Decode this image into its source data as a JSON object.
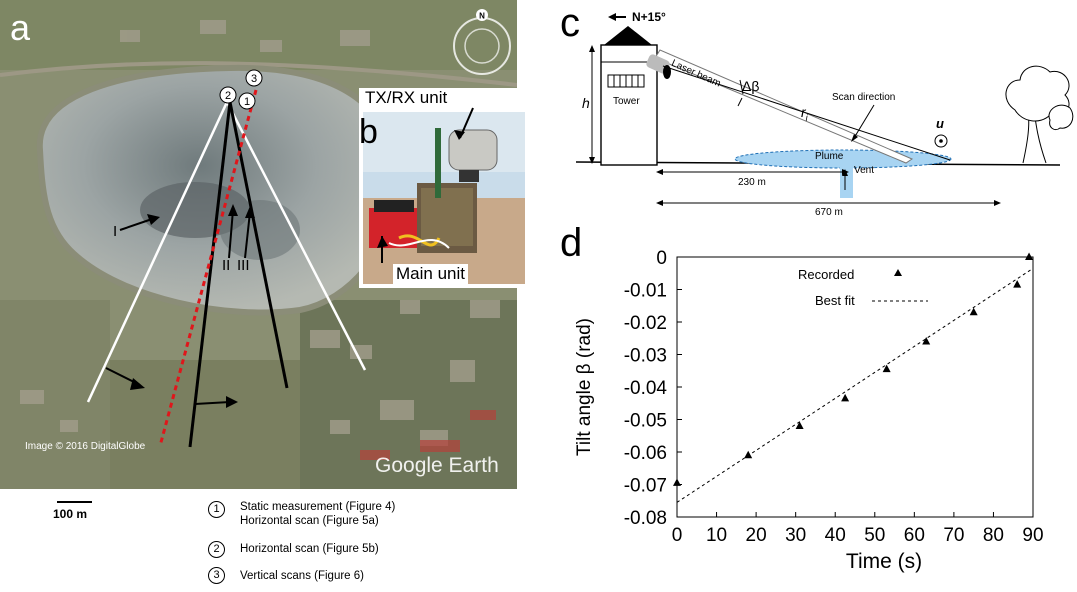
{
  "panel_a": {
    "letter": "a",
    "compass": "N",
    "scan_numbers": [
      "1",
      "2",
      "3"
    ],
    "features": [
      "I",
      "II",
      "III"
    ],
    "watermark": "Google Earth",
    "image_credit": "Image © 2016 DigitalGlobe",
    "scale_label": "100 m",
    "legend": [
      {
        "num": "1",
        "lines": [
          "Static measurement (Figure 4)",
          "Horizontal scan (Figure 5a)"
        ]
      },
      {
        "num": "2",
        "lines": [
          "Horizontal scan (Figure 5b)"
        ]
      },
      {
        "num": "3",
        "lines": [
          "Vertical scans (Figure 6)"
        ]
      }
    ]
  },
  "panel_b": {
    "letter": "b",
    "txrx_label": "TX/RX unit",
    "main_label": "Main unit"
  },
  "panel_c": {
    "letter": "c",
    "north": "N+15°",
    "tower": "Tower",
    "laser_beam": "Laser beam",
    "delta_beta": "Δβ",
    "r_label": "r",
    "r_sub": "i",
    "scan_direction": "Scan direction",
    "plume": "Plume",
    "vent": "Vent",
    "u_label": "u",
    "h_label": "h",
    "dist_230": "230 m",
    "dist_670": "670 m"
  },
  "panel_d": {
    "letter": "d"
  },
  "chart_data": {
    "type": "scatter",
    "xlabel": "Time (s)",
    "ylabel": "Tilt angle β (rad)",
    "xlim": [
      0,
      90
    ],
    "ylim": [
      -0.08,
      0
    ],
    "xticks": [
      "0",
      "10",
      "20",
      "30",
      "40",
      "50",
      "60",
      "70",
      "80",
      "90"
    ],
    "yticks": [
      "0",
      "-0.01",
      "-0.02",
      "-0.03",
      "-0.04",
      "-0.05",
      "-0.06",
      "-0.07",
      "-0.08"
    ],
    "legend": {
      "recorded": "Recorded",
      "fit": "Best fit"
    },
    "series": [
      {
        "name": "Recorded",
        "x": [
          0,
          18,
          31,
          42.5,
          53,
          63,
          75,
          86,
          89
        ],
        "y": [
          -0.0695,
          -0.061,
          -0.052,
          -0.0435,
          -0.0345,
          -0.026,
          -0.017,
          -0.0085,
          0
        ]
      }
    ],
    "fit": {
      "x": [
        0,
        90
      ],
      "y": [
        -0.0755,
        -0.0035
      ]
    }
  }
}
